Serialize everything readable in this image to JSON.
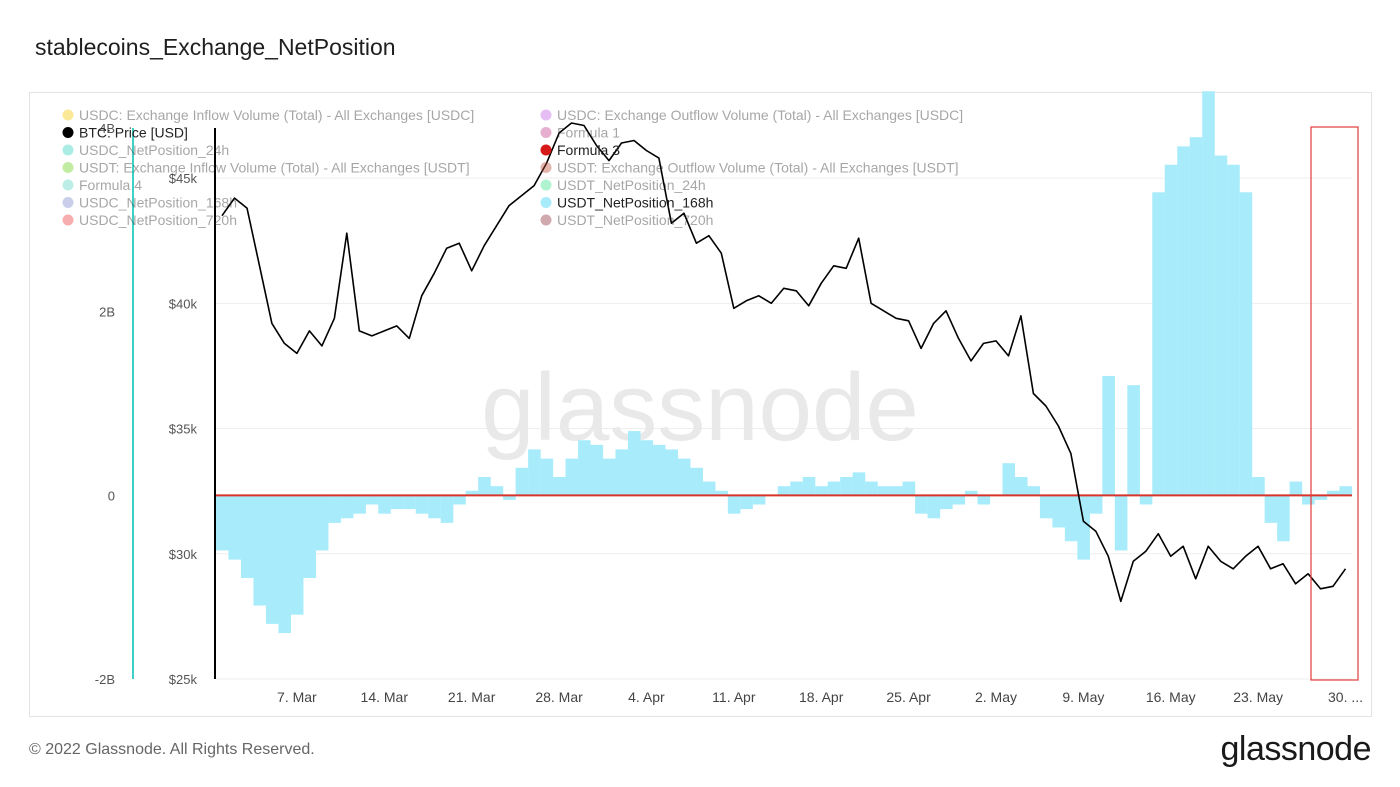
{
  "title": "stablecoins_Exchange_NetPosition",
  "footer": "© 2022 Glassnode. All Rights Reserved.",
  "logo": "glassnode",
  "watermark": "glassnode",
  "colors": {
    "btc": "#000000",
    "usdt_168h": "#a8ecfb",
    "zero_line": "#d9342b",
    "left_axis_line": "#3dd1c6",
    "highlight_box": "#e23b3b",
    "gridline": "#eeeeee"
  },
  "legend": {
    "left": [
      {
        "label": "USDC: Exchange Inflow Volume (Total) - All Exchanges [USDC]",
        "color": "#f2c900",
        "active": false
      },
      {
        "label": "BTC: Price [USD]",
        "color": "#000000",
        "active": true
      },
      {
        "label": "USDC_NetPosition_24h",
        "color": "#2fd1bd",
        "active": false
      },
      {
        "label": "USDT: Exchange Inflow Volume (Total) - All Exchanges [USDT]",
        "color": "#6bd11c",
        "active": false
      },
      {
        "label": "Formula 4",
        "color": "#5dd3c4",
        "active": false
      },
      {
        "label": "USDC_NetPosition_168h",
        "color": "#7a86cc",
        "active": false
      },
      {
        "label": "USDC_NetPosition_720h",
        "color": "#ec3636",
        "active": false
      }
    ],
    "right": [
      {
        "label": "USDC: Exchange Outflow Volume (Total) - All Exchanges [USDC]",
        "color": "#c05fe6",
        "active": false
      },
      {
        "label": "Formula 1",
        "color": "#c43a8a",
        "active": false
      },
      {
        "label": "Formula 3",
        "color": "#d61919",
        "active": true
      },
      {
        "label": "USDT: Exchange Outflow Volume (Total) - All Exchanges [USDT]",
        "color": "#b84a33",
        "active": false
      },
      {
        "label": "USDT_NetPosition_24h",
        "color": "#3de38b",
        "active": false
      },
      {
        "label": "USDT_NetPosition_168h",
        "color": "#a8ecfb",
        "active": true
      },
      {
        "label": "USDT_NetPosition_720h",
        "color": "#8c2b37",
        "active": false
      }
    ]
  },
  "chart_data": {
    "type": "line",
    "x_ticks": [
      "7. Mar",
      "14. Mar",
      "21. Mar",
      "28. Mar",
      "4. Apr",
      "11. Apr",
      "18. Apr",
      "25. Apr",
      "2. May",
      "9. May",
      "16. May",
      "23. May",
      "30. ..."
    ],
    "y_left": {
      "ticks": [
        "4B",
        "2B",
        "0",
        "-2B"
      ],
      "range": [
        -2000000000,
        4000000000
      ]
    },
    "y_right": {
      "ticks": [
        "$45k",
        "$40k",
        "$35k",
        "$30k",
        "$25k"
      ],
      "range": [
        25000,
        47000
      ]
    },
    "grid": true,
    "series": [
      {
        "name": "BTC: Price [USD]",
        "axis": "right",
        "type": "line",
        "x": [
          "2022-03-01",
          "2022-03-02",
          "2022-03-03",
          "2022-03-04",
          "2022-03-05",
          "2022-03-06",
          "2022-03-07",
          "2022-03-08",
          "2022-03-09",
          "2022-03-10",
          "2022-03-11",
          "2022-03-12",
          "2022-03-13",
          "2022-03-14",
          "2022-03-15",
          "2022-03-16",
          "2022-03-17",
          "2022-03-18",
          "2022-03-19",
          "2022-03-20",
          "2022-03-21",
          "2022-03-22",
          "2022-03-23",
          "2022-03-24",
          "2022-03-25",
          "2022-03-26",
          "2022-03-27",
          "2022-03-28",
          "2022-03-29",
          "2022-03-30",
          "2022-03-31",
          "2022-04-01",
          "2022-04-02",
          "2022-04-03",
          "2022-04-04",
          "2022-04-05",
          "2022-04-06",
          "2022-04-07",
          "2022-04-08",
          "2022-04-09",
          "2022-04-10",
          "2022-04-11",
          "2022-04-12",
          "2022-04-13",
          "2022-04-14",
          "2022-04-15",
          "2022-04-16",
          "2022-04-17",
          "2022-04-18",
          "2022-04-19",
          "2022-04-20",
          "2022-04-21",
          "2022-04-22",
          "2022-04-23",
          "2022-04-24",
          "2022-04-25",
          "2022-04-26",
          "2022-04-27",
          "2022-04-28",
          "2022-04-29",
          "2022-04-30",
          "2022-05-01",
          "2022-05-02",
          "2022-05-03",
          "2022-05-04",
          "2022-05-05",
          "2022-05-06",
          "2022-05-07",
          "2022-05-08",
          "2022-05-09",
          "2022-05-10",
          "2022-05-11",
          "2022-05-12",
          "2022-05-13",
          "2022-05-14",
          "2022-05-15",
          "2022-05-16",
          "2022-05-17",
          "2022-05-18",
          "2022-05-19",
          "2022-05-20",
          "2022-05-21",
          "2022-05-22",
          "2022-05-23",
          "2022-05-24",
          "2022-05-25",
          "2022-05-26",
          "2022-05-27",
          "2022-05-28",
          "2022-05-29",
          "2022-05-30"
        ],
        "values": [
          43500,
          44200,
          43800,
          41500,
          39200,
          38400,
          38000,
          38900,
          38300,
          39400,
          42800,
          38900,
          38700,
          38900,
          39100,
          38600,
          40300,
          41200,
          42200,
          42400,
          41300,
          42300,
          43100,
          43900,
          44300,
          44700,
          45600,
          46800,
          47200,
          47100,
          46300,
          45700,
          46400,
          46500,
          46100,
          45800,
          43200,
          43600,
          42400,
          42700,
          42000,
          39800,
          40100,
          40300,
          40000,
          40600,
          40500,
          39900,
          40800,
          41500,
          41400,
          42600,
          40000,
          39700,
          39400,
          39300,
          38200,
          39200,
          39700,
          38600,
          37700,
          38400,
          38500,
          37900,
          39500,
          36400,
          35900,
          35100,
          34000,
          31300,
          30900,
          29900,
          28100,
          29700,
          30100,
          30800,
          29900,
          30300,
          29000,
          30300,
          29700,
          29400,
          29900,
          30300,
          29400,
          29600,
          28800,
          29200,
          28600,
          28700,
          29400
        ]
      },
      {
        "name": "USDT_NetPosition_168h",
        "axis": "left",
        "type": "area",
        "x": [
          "2022-03-01",
          "2022-03-02",
          "2022-03-03",
          "2022-03-04",
          "2022-03-05",
          "2022-03-06",
          "2022-03-07",
          "2022-03-08",
          "2022-03-09",
          "2022-03-10",
          "2022-03-11",
          "2022-03-12",
          "2022-03-13",
          "2022-03-14",
          "2022-03-15",
          "2022-03-16",
          "2022-03-17",
          "2022-03-18",
          "2022-03-19",
          "2022-03-20",
          "2022-03-21",
          "2022-03-22",
          "2022-03-23",
          "2022-03-24",
          "2022-03-25",
          "2022-03-26",
          "2022-03-27",
          "2022-03-28",
          "2022-03-29",
          "2022-03-30",
          "2022-03-31",
          "2022-04-01",
          "2022-04-02",
          "2022-04-03",
          "2022-04-04",
          "2022-04-05",
          "2022-04-06",
          "2022-04-07",
          "2022-04-08",
          "2022-04-09",
          "2022-04-10",
          "2022-04-11",
          "2022-04-12",
          "2022-04-13",
          "2022-04-14",
          "2022-04-15",
          "2022-04-16",
          "2022-04-17",
          "2022-04-18",
          "2022-04-19",
          "2022-04-20",
          "2022-04-21",
          "2022-04-22",
          "2022-04-23",
          "2022-04-24",
          "2022-04-25",
          "2022-04-26",
          "2022-04-27",
          "2022-04-28",
          "2022-04-29",
          "2022-04-30",
          "2022-05-01",
          "2022-05-02",
          "2022-05-03",
          "2022-05-04",
          "2022-05-05",
          "2022-05-06",
          "2022-05-07",
          "2022-05-08",
          "2022-05-09",
          "2022-05-10",
          "2022-05-11",
          "2022-05-12",
          "2022-05-13",
          "2022-05-14",
          "2022-05-15",
          "2022-05-16",
          "2022-05-17",
          "2022-05-18",
          "2022-05-19",
          "2022-05-20",
          "2022-05-21",
          "2022-05-22",
          "2022-05-23",
          "2022-05-24",
          "2022-05-25",
          "2022-05-26",
          "2022-05-27",
          "2022-05-28",
          "2022-05-29",
          "2022-05-30"
        ],
        "values": [
          -600000000,
          -700000000,
          -900000000,
          -1200000000,
          -1400000000,
          -1500000000,
          -1300000000,
          -900000000,
          -600000000,
          -300000000,
          -250000000,
          -200000000,
          -100000000,
          -200000000,
          -150000000,
          -150000000,
          -200000000,
          -250000000,
          -300000000,
          -100000000,
          50000000,
          200000000,
          100000000,
          -50000000,
          300000000,
          500000000,
          400000000,
          200000000,
          400000000,
          600000000,
          550000000,
          400000000,
          500000000,
          700000000,
          600000000,
          550000000,
          500000000,
          400000000,
          300000000,
          150000000,
          50000000,
          -200000000,
          -150000000,
          -100000000,
          0,
          100000000,
          150000000,
          200000000,
          100000000,
          150000000,
          200000000,
          250000000,
          150000000,
          100000000,
          100000000,
          150000000,
          -200000000,
          -250000000,
          -150000000,
          -100000000,
          50000000,
          -100000000,
          0,
          350000000,
          200000000,
          100000000,
          -250000000,
          -350000000,
          -500000000,
          -700000000,
          -200000000,
          1300000000,
          -600000000,
          1200000000,
          -100000000,
          3300000000,
          3600000000,
          3800000000,
          3900000000,
          4400000000,
          3700000000,
          3600000000,
          3300000000,
          200000000,
          -300000000,
          -500000000,
          150000000,
          -100000000,
          -50000000,
          50000000,
          100000000
        ]
      },
      {
        "name": "Formula 3",
        "axis": "left",
        "type": "line",
        "values": [
          0
        ]
      }
    ]
  }
}
